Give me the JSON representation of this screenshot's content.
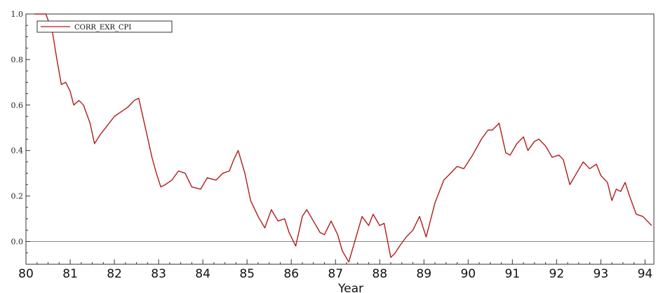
{
  "chart_data": {
    "type": "line",
    "xlabel": "Year",
    "ylabel": "",
    "title": "",
    "xlim": [
      80,
      94.2
    ],
    "ylim": [
      -0.1,
      1.0
    ],
    "x_ticks": [
      80,
      81,
      82,
      83,
      84,
      85,
      86,
      87,
      88,
      89,
      90,
      91,
      92,
      93,
      94
    ],
    "x_tick_labels": [
      "80",
      "81",
      "82",
      "83",
      "84",
      "85",
      "86",
      "87",
      "88",
      "89",
      "90",
      "91",
      "92",
      "93",
      "94"
    ],
    "y_ticks": [
      0.0,
      0.2,
      0.4,
      0.6,
      0.8,
      1.0
    ],
    "y_tick_labels": [
      "0.0",
      "0.2",
      "0.4",
      "0.6",
      "0.8",
      "1.0"
    ],
    "reference_line_y": 0.0,
    "grid": false,
    "legend_position": "top-left",
    "series": [
      {
        "name": "CORR_EXR_CPI",
        "color": "#b01c1c",
        "x": [
          80.2,
          80.45,
          80.6,
          80.7,
          80.8,
          80.9,
          81.0,
          81.08,
          81.2,
          81.3,
          81.45,
          81.55,
          81.68,
          81.8,
          82.0,
          82.15,
          82.3,
          82.45,
          82.55,
          82.7,
          82.85,
          82.95,
          83.05,
          83.15,
          83.3,
          83.45,
          83.6,
          83.75,
          83.95,
          84.1,
          84.3,
          84.45,
          84.6,
          84.7,
          84.8,
          84.95,
          85.08,
          85.25,
          85.4,
          85.55,
          85.7,
          85.85,
          85.95,
          86.1,
          86.25,
          86.35,
          86.5,
          86.65,
          86.75,
          86.9,
          87.05,
          87.15,
          87.3,
          87.45,
          87.6,
          87.75,
          87.85,
          88.0,
          88.1,
          88.25,
          88.35,
          88.45,
          88.6,
          88.75,
          88.9,
          89.05,
          89.25,
          89.45,
          89.6,
          89.75,
          89.9,
          90.1,
          90.3,
          90.45,
          90.55,
          90.7,
          90.85,
          90.95,
          91.1,
          91.25,
          91.35,
          91.5,
          91.6,
          91.75,
          91.9,
          92.05,
          92.15,
          92.3,
          92.45,
          92.6,
          92.75,
          92.9,
          93.0,
          93.15,
          93.25,
          93.35,
          93.45,
          93.55,
          93.65,
          93.8,
          93.95,
          94.05,
          94.15
        ],
        "y": [
          1.0,
          1.0,
          0.92,
          0.8,
          0.69,
          0.7,
          0.66,
          0.6,
          0.62,
          0.6,
          0.52,
          0.43,
          0.47,
          0.5,
          0.55,
          0.57,
          0.59,
          0.62,
          0.63,
          0.5,
          0.37,
          0.3,
          0.24,
          0.25,
          0.27,
          0.31,
          0.3,
          0.24,
          0.23,
          0.28,
          0.27,
          0.3,
          0.31,
          0.36,
          0.4,
          0.3,
          0.18,
          0.11,
          0.06,
          0.14,
          0.09,
          0.1,
          0.04,
          -0.02,
          0.11,
          0.14,
          0.09,
          0.04,
          0.03,
          0.09,
          0.03,
          -0.04,
          -0.09,
          0.01,
          0.11,
          0.07,
          0.12,
          0.07,
          0.08,
          -0.07,
          -0.05,
          -0.02,
          0.02,
          0.05,
          0.11,
          0.02,
          0.17,
          0.27,
          0.3,
          0.33,
          0.32,
          0.38,
          0.45,
          0.49,
          0.49,
          0.52,
          0.39,
          0.38,
          0.43,
          0.46,
          0.4,
          0.44,
          0.45,
          0.42,
          0.37,
          0.38,
          0.36,
          0.25,
          0.3,
          0.35,
          0.32,
          0.34,
          0.29,
          0.26,
          0.18,
          0.23,
          0.22,
          0.26,
          0.2,
          0.12,
          0.11,
          0.09,
          0.07
        ]
      }
    ]
  }
}
